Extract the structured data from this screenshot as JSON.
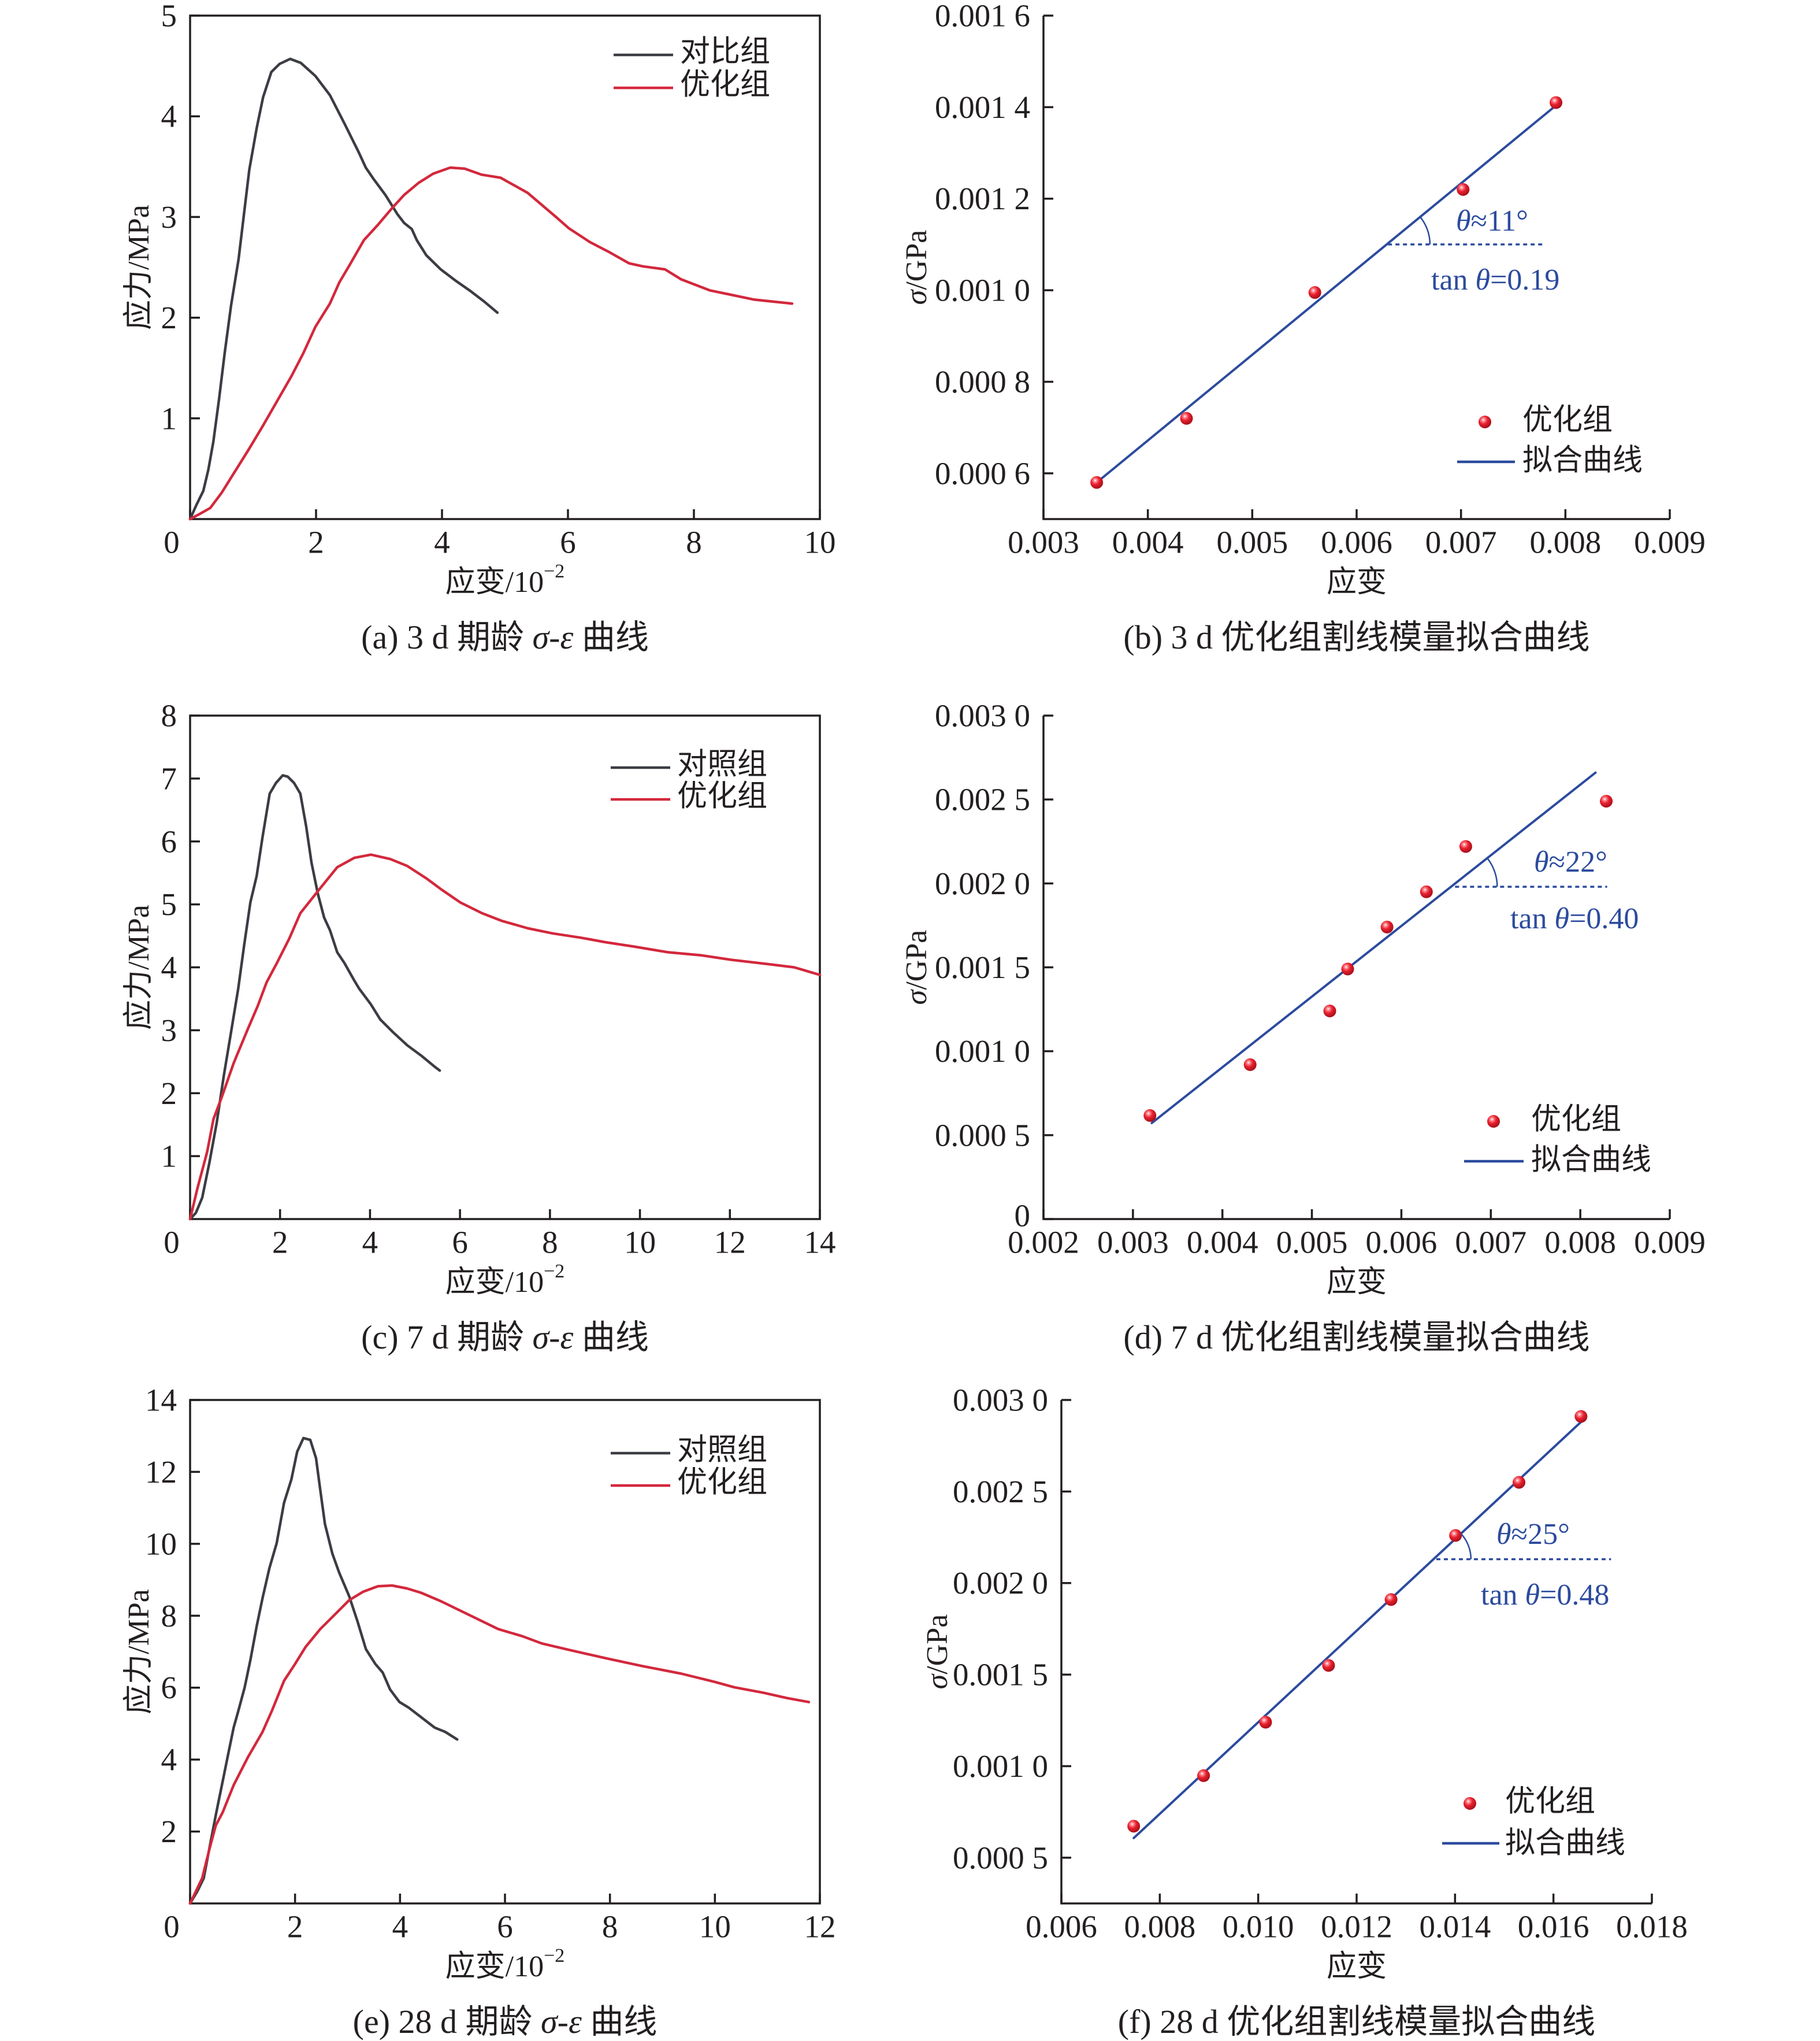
{
  "chart_data": [
    {
      "id": "a",
      "type": "line",
      "title": {
        "pre": "(a) 3 d 期龄 ",
        "italic": "σ-ε",
        "post": " 曲线"
      },
      "xlabel": {
        "text": "应变/10",
        "sup": "−2"
      },
      "ylabel": {
        "italic": "",
        "text": "应力/MPa"
      },
      "xlim": [
        0,
        10
      ],
      "ylim": [
        0,
        5
      ],
      "xticks": {
        "values": [
          0,
          2,
          4,
          6,
          8,
          10
        ],
        "labels": [
          "0",
          "2",
          "4",
          "6",
          "8",
          "10"
        ]
      },
      "yticks": {
        "values": [
          1,
          2,
          3,
          4,
          5
        ],
        "labels": [
          "1",
          "2",
          "3",
          "4",
          "5"
        ]
      },
      "grid": false,
      "legend": "top-right",
      "series": [
        {
          "name": "对比组",
          "kind": "line",
          "color": "#3b3d43",
          "x": [
            0,
            0.1,
            0.21,
            0.29,
            0.37,
            0.46,
            0.55,
            0.65,
            0.77,
            0.86,
            0.94,
            1.06,
            1.16,
            1.29,
            1.42,
            1.59,
            1.76,
            1.99,
            2.22,
            2.45,
            2.68,
            2.79,
            2.91,
            3.1,
            3.29,
            3.4,
            3.52,
            3.6,
            3.75,
            3.98,
            4.21,
            4.44,
            4.67,
            4.88
          ],
          "y": [
            0,
            0.14,
            0.28,
            0.49,
            0.77,
            1.19,
            1.65,
            2.12,
            2.58,
            3.05,
            3.47,
            3.89,
            4.19,
            4.44,
            4.52,
            4.57,
            4.53,
            4.4,
            4.21,
            3.93,
            3.64,
            3.49,
            3.38,
            3.22,
            3.03,
            2.94,
            2.88,
            2.77,
            2.62,
            2.48,
            2.37,
            2.27,
            2.16,
            2.05
          ]
        },
        {
          "name": "优化组",
          "kind": "line",
          "color": "#d3283c",
          "x": [
            0,
            0.15,
            0.32,
            0.5,
            0.69,
            0.92,
            1.15,
            1.38,
            1.61,
            1.8,
            1.99,
            2.22,
            2.37,
            2.53,
            2.76,
            2.98,
            3.21,
            3.4,
            3.63,
            3.86,
            4.13,
            4.36,
            4.63,
            4.93,
            5.36,
            5.81,
            6.01,
            6.35,
            6.66,
            6.97,
            7.19,
            7.54,
            7.8,
            8.26,
            8.57,
            8.95,
            9.56
          ],
          "y": [
            0,
            0.05,
            0.11,
            0.26,
            0.45,
            0.68,
            0.92,
            1.17,
            1.42,
            1.65,
            1.91,
            2.14,
            2.35,
            2.52,
            2.77,
            2.92,
            3.09,
            3.22,
            3.34,
            3.43,
            3.49,
            3.48,
            3.42,
            3.39,
            3.24,
            3.0,
            2.89,
            2.75,
            2.65,
            2.54,
            2.51,
            2.48,
            2.38,
            2.27,
            2.23,
            2.18,
            2.14
          ]
        }
      ]
    },
    {
      "id": "b",
      "type": "scatter",
      "title": {
        "pre": "(b) 3 d 优化组割线模量拟合曲线",
        "italic": "",
        "post": ""
      },
      "xlabel": {
        "text": "应变",
        "sup": ""
      },
      "ylabel": {
        "italic": "σ",
        "text": "/GPa"
      },
      "xlim": [
        0.003,
        0.009
      ],
      "ylim": [
        0.0005,
        0.0016
      ],
      "xticks": {
        "values": [
          0.003,
          0.004,
          0.005,
          0.006,
          0.007,
          0.008,
          0.009
        ],
        "labels": [
          "0.003",
          "0.004",
          "0.005",
          "0.006",
          "0.007",
          "0.008",
          "0.009"
        ]
      },
      "yticks": {
        "values": [
          0.0006,
          0.0008,
          0.001,
          0.0012,
          0.0014,
          0.0016
        ],
        "labels": [
          "0.000 6",
          "0.000 8",
          "0.001 0",
          "0.001 2",
          "0.001 4",
          "0.001 6"
        ]
      },
      "grid": false,
      "legend": "lower-right",
      "series": [
        {
          "name": "优化组",
          "kind": "scatter",
          "color": "#e3222f",
          "x": [
            0.00351,
            0.00437,
            0.0056,
            0.00702,
            0.00791
          ],
          "y": [
            0.00058,
            0.00072,
            0.000995,
            0.00122,
            0.00141
          ]
        },
        {
          "name": "拟合曲线",
          "kind": "fit",
          "color": "#2c4b9e",
          "x": [
            0.00351,
            0.00789
          ],
          "y": [
            0.00058,
            0.0014
          ]
        }
      ],
      "annotation": {
        "color": "#2c4b9e",
        "angle_deg": 11,
        "tan_value": 0.19,
        "angle": {
          "italic": "θ",
          "text": "≈11°"
        },
        "tan": {
          "pre": "tan ",
          "italic": "θ",
          "post": "=0.19"
        },
        "ref_line": {
          "x": [
            0.0063,
            0.0078
          ],
          "y": 0.0011
        }
      }
    },
    {
      "id": "c",
      "type": "line",
      "title": {
        "pre": "(c) 7 d 期龄 ",
        "italic": "σ-ε",
        "post": " 曲线"
      },
      "xlabel": {
        "text": "应变/10",
        "sup": "−2"
      },
      "ylabel": {
        "italic": "",
        "text": "应力/MPa"
      },
      "xlim": [
        0,
        14
      ],
      "ylim": [
        0,
        8
      ],
      "xticks": {
        "values": [
          0,
          2,
          4,
          6,
          8,
          10,
          12,
          14
        ],
        "labels": [
          "0",
          "2",
          "4",
          "6",
          "8",
          "10",
          "12",
          "14"
        ]
      },
      "yticks": {
        "values": [
          1,
          2,
          3,
          4,
          5,
          6,
          7,
          8
        ],
        "labels": [
          "1",
          "2",
          "3",
          "4",
          "5",
          "6",
          "7",
          "8"
        ]
      },
      "grid": false,
      "legend": "top-right",
      "series": [
        {
          "name": "对照组",
          "kind": "line",
          "color": "#3b3d43",
          "x": [
            0,
            0.13,
            0.27,
            0.43,
            0.59,
            0.75,
            0.91,
            1.07,
            1.2,
            1.34,
            1.48,
            1.61,
            1.77,
            1.91,
            2.06,
            2.17,
            2.31,
            2.45,
            2.58,
            2.7,
            2.84,
            2.98,
            3.11,
            3.27,
            3.43,
            3.65,
            3.76,
            4.02,
            4.23,
            4.51,
            4.83,
            5.15,
            5.42,
            5.55
          ],
          "y": [
            0,
            0.1,
            0.34,
            0.9,
            1.52,
            2.28,
            2.97,
            3.66,
            4.34,
            5.03,
            5.45,
            6.07,
            6.76,
            6.93,
            7.05,
            7.03,
            6.93,
            6.76,
            6.24,
            5.66,
            5.17,
            4.79,
            4.59,
            4.24,
            4.07,
            3.79,
            3.66,
            3.41,
            3.17,
            2.97,
            2.76,
            2.59,
            2.43,
            2.36
          ]
        },
        {
          "name": "优化组",
          "kind": "line",
          "color": "#d3283c",
          "x": [
            0,
            0.16,
            0.38,
            0.52,
            0.7,
            0.97,
            1.29,
            1.5,
            1.7,
            1.93,
            2.2,
            2.45,
            2.84,
            3.27,
            3.65,
            4.02,
            4.45,
            4.83,
            5.26,
            5.58,
            6.01,
            6.49,
            6.92,
            7.51,
            8.05,
            8.69,
            9.23,
            9.87,
            10.62,
            11.37,
            12.02,
            12.87,
            13.43,
            14.0
          ],
          "y": [
            0,
            0.48,
            1.07,
            1.59,
            1.93,
            2.48,
            3.03,
            3.38,
            3.76,
            4.07,
            4.45,
            4.86,
            5.21,
            5.59,
            5.74,
            5.79,
            5.72,
            5.61,
            5.41,
            5.24,
            5.03,
            4.86,
            4.74,
            4.62,
            4.54,
            4.47,
            4.4,
            4.33,
            4.24,
            4.19,
            4.12,
            4.05,
            4.0,
            3.88
          ]
        }
      ]
    },
    {
      "id": "d",
      "type": "scatter",
      "title": {
        "pre": "(d) 7 d 优化组割线模量拟合曲线",
        "italic": "",
        "post": ""
      },
      "xlabel": {
        "text": "应变",
        "sup": ""
      },
      "ylabel": {
        "italic": "σ",
        "text": "/GPa"
      },
      "xlim": [
        0.002,
        0.009
      ],
      "ylim": [
        0,
        0.003
      ],
      "xticks": {
        "values": [
          0.002,
          0.003,
          0.004,
          0.005,
          0.006,
          0.007,
          0.008,
          0.009
        ],
        "labels": [
          "0.002",
          "0.003",
          "0.004",
          "0.005",
          "0.006",
          "0.007",
          "0.008",
          "0.009"
        ]
      },
      "yticks": {
        "values": [
          0,
          0.0005,
          0.001,
          0.0015,
          0.002,
          0.0025,
          0.003
        ],
        "labels": [
          "0",
          "0.000 5",
          "0.001 0",
          "0.001 5",
          "0.002 0",
          "0.002 5",
          "0.003 0"
        ]
      },
      "grid": false,
      "legend": "lower-right",
      "series": [
        {
          "name": "优化组",
          "kind": "scatter",
          "color": "#e3222f",
          "x": [
            0.00319,
            0.00431,
            0.0052,
            0.0054,
            0.00584,
            0.00628,
            0.00672,
            0.00829
          ],
          "y": [
            0.000617,
            0.00092,
            0.00124,
            0.00149,
            0.00174,
            0.00195,
            0.00222,
            0.00249
          ]
        },
        {
          "name": "拟合曲线",
          "kind": "fit",
          "color": "#2c4b9e",
          "x": [
            0.00321,
            0.00817
          ],
          "y": [
            0.000572,
            0.00266
          ]
        }
      ],
      "annotation": {
        "color": "#2c4b9e",
        "angle_deg": 22,
        "tan_value": 0.4,
        "angle": {
          "italic": "θ",
          "text": "≈22°"
        },
        "tan": {
          "pre": "tan ",
          "italic": "θ",
          "post": "=0.40"
        },
        "ref_line": {
          "x": [
            0.0066,
            0.0083
          ],
          "y": 0.00198
        }
      }
    },
    {
      "id": "e",
      "type": "line",
      "title": {
        "pre": "(e) 28 d 期龄 ",
        "italic": "σ-ε",
        "post": " 曲线"
      },
      "xlabel": {
        "text": "应变/10",
        "sup": "−2"
      },
      "ylabel": {
        "italic": "",
        "text": "应力/MPa"
      },
      "xlim": [
        0,
        12
      ],
      "ylim": [
        0,
        14
      ],
      "xticks": {
        "values": [
          0,
          2,
          4,
          6,
          8,
          10,
          12
        ],
        "labels": [
          "0",
          "2",
          "4",
          "6",
          "8",
          "10",
          "12"
        ]
      },
      "yticks": {
        "values": [
          2,
          4,
          6,
          8,
          10,
          12,
          14
        ],
        "labels": [
          "2",
          "4",
          "6",
          "8",
          "10",
          "12",
          "14"
        ]
      },
      "grid": false,
      "legend": "top-right",
      "series": [
        {
          "name": "对照组",
          "kind": "line",
          "color": "#3b3d43",
          "x": [
            0,
            0.14,
            0.26,
            0.39,
            0.5,
            0.64,
            0.73,
            0.83,
            0.92,
            1.04,
            1.15,
            1.27,
            1.38,
            1.51,
            1.65,
            1.79,
            1.93,
            2.04,
            2.16,
            2.29,
            2.4,
            2.48,
            2.57,
            2.71,
            2.84,
            3.03,
            3.19,
            3.35,
            3.53,
            3.67,
            3.81,
            3.99,
            4.17,
            4.4,
            4.66,
            4.86,
            5.09
          ],
          "y": [
            0,
            0.34,
            0.7,
            1.7,
            2.53,
            3.53,
            4.18,
            4.89,
            5.36,
            6.01,
            6.78,
            7.72,
            8.49,
            9.32,
            10.02,
            11.14,
            11.79,
            12.56,
            12.94,
            12.89,
            12.38,
            11.5,
            10.55,
            9.73,
            9.2,
            8.55,
            7.84,
            7.07,
            6.66,
            6.42,
            5.95,
            5.6,
            5.44,
            5.18,
            4.89,
            4.77,
            4.56
          ]
        },
        {
          "name": "优化组",
          "kind": "line",
          "color": "#d3283c",
          "x": [
            0,
            0.23,
            0.37,
            0.49,
            0.62,
            0.83,
            1.1,
            1.38,
            1.56,
            1.79,
            2.0,
            2.2,
            2.48,
            2.75,
            3.03,
            3.3,
            3.58,
            3.85,
            4.13,
            4.4,
            4.77,
            5.32,
            5.87,
            6.33,
            6.7,
            7.16,
            7.52,
            7.98,
            8.62,
            9.36,
            10.0,
            10.37,
            10.92,
            11.38,
            11.79
          ],
          "y": [
            0,
            0.7,
            1.52,
            2.17,
            2.53,
            3.29,
            4.06,
            4.77,
            5.36,
            6.19,
            6.66,
            7.13,
            7.63,
            8.02,
            8.43,
            8.67,
            8.82,
            8.84,
            8.76,
            8.64,
            8.41,
            8.02,
            7.63,
            7.43,
            7.23,
            7.07,
            6.95,
            6.8,
            6.6,
            6.39,
            6.16,
            6.01,
            5.86,
            5.71,
            5.6
          ]
        }
      ]
    },
    {
      "id": "f",
      "type": "scatter",
      "title": {
        "pre": "(f) 28 d 优化组割线模量拟合曲线",
        "italic": "",
        "post": ""
      },
      "xlabel": {
        "text": "应变",
        "sup": ""
      },
      "ylabel": {
        "italic": "σ",
        "text": "/GPa"
      },
      "xlim": [
        0.006,
        0.018
      ],
      "ylim": [
        0.00025,
        0.003
      ],
      "xticks": {
        "values": [
          0.006,
          0.008,
          0.01,
          0.012,
          0.014,
          0.016,
          0.018
        ],
        "labels": [
          "0.006",
          "0.008",
          "0.010",
          "0.012",
          "0.014",
          "0.016",
          "0.018"
        ]
      },
      "yticks": {
        "values": [
          0.0005,
          0.001,
          0.0015,
          0.002,
          0.0025,
          0.003
        ],
        "labels": [
          "0.000 5",
          "0.001 0",
          "0.001 5",
          "0.002 0",
          "0.002 5",
          "0.003 0"
        ]
      },
      "grid": false,
      "legend": "lower-right",
      "series": [
        {
          "name": "优化组",
          "kind": "scatter",
          "color": "#e3222f",
          "x": [
            0.00747,
            0.00889,
            0.01015,
            0.01143,
            0.0127,
            0.01401,
            0.0153,
            0.01656
          ],
          "y": [
            0.000672,
            0.000948,
            0.00124,
            0.00155,
            0.00191,
            0.00226,
            0.00255,
            0.00291
          ]
        },
        {
          "name": "拟合曲线",
          "kind": "fit",
          "color": "#2c4b9e",
          "x": [
            0.00747,
            0.01656
          ],
          "y": [
            0.000607,
            0.00288
          ]
        }
      ],
      "annotation": {
        "color": "#2c4b9e",
        "angle_deg": 25,
        "tan_value": 0.48,
        "angle": {
          "italic": "θ",
          "text": "≈25°"
        },
        "tan": {
          "pre": "tan ",
          "italic": "θ",
          "post": "=0.48"
        },
        "ref_line": {
          "x": [
            0.01362,
            0.01717
          ],
          "y": 0.00213
        }
      }
    }
  ]
}
